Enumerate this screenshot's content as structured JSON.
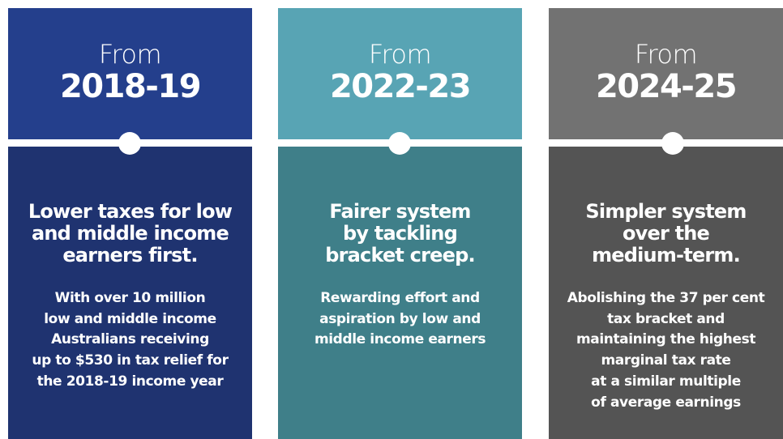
{
  "columns": [
    {
      "from": "From",
      "year": "2018-19",
      "heading": [
        "Lower taxes for low",
        "and middle income",
        "earners first."
      ],
      "body": [
        "With over 10 million",
        "low and middle income",
        "Australians receiving",
        "up to $530 in tax relief for",
        "the 2018-19 income year"
      ],
      "top_color": "#243f8c",
      "bottom_color": "#1f3370"
    },
    {
      "from": "From",
      "year": "2022-23",
      "heading": [
        "Fairer system",
        "by tackling",
        "bracket creep."
      ],
      "body": [
        "Rewarding effort and",
        "aspiration by low and",
        "middle income earners"
      ],
      "top_color": "#58a4b4",
      "bottom_color": "#3f7f89"
    },
    {
      "from": "From",
      "year": "2024-25",
      "heading": [
        "Simpler system",
        "over the",
        "medium-term."
      ],
      "body": [
        "Abolishing the 37 per cent",
        "tax bracket and",
        "maintaining the highest",
        "marginal tax rate",
        "at a similar multiple",
        "of average earnings"
      ],
      "top_color": "#727272",
      "bottom_color": "#545454"
    }
  ]
}
